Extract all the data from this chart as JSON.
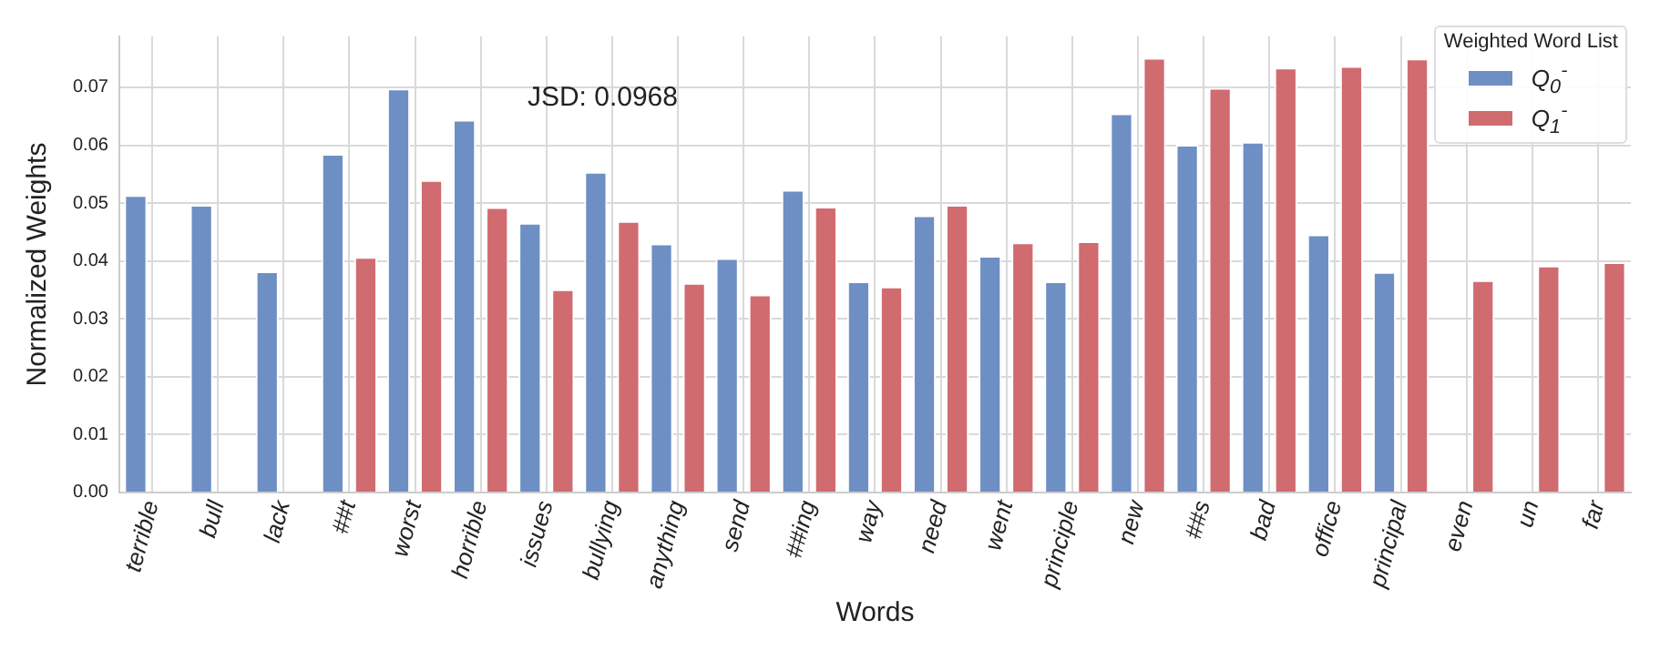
{
  "chart_data": {
    "type": "bar",
    "xlabel": "Words",
    "ylabel": "Normalized Weights",
    "legend_title": "Weighted Word List",
    "categories": [
      "terrible",
      "bull",
      "lack",
      "##t",
      "worst",
      "horrible",
      "issues",
      "bullying",
      "anything",
      "send",
      "##ing",
      "way",
      "need",
      "went",
      "principle",
      "new",
      "##s",
      "bad",
      "office",
      "principal",
      "even",
      "un",
      "far"
    ],
    "series": [
      {
        "name": "Q$_{0}$$^{-}$",
        "color": "#6e8fc4",
        "values": [
          0.0514,
          0.0497,
          0.0382,
          0.0585,
          0.0698,
          0.0644,
          0.0466,
          0.0554,
          0.043,
          0.0405,
          0.0523,
          0.0365,
          0.0479,
          0.0409,
          0.0365,
          0.0655,
          0.0601,
          0.0606,
          0.0446,
          0.0381,
          null,
          null,
          null
        ]
      },
      {
        "name": "Q$_{1}$$^{-}$",
        "color": "#d06b70",
        "values": [
          null,
          null,
          null,
          0.0407,
          0.054,
          0.0493,
          0.0351,
          0.0469,
          0.0362,
          0.0342,
          0.0494,
          0.0356,
          0.0497,
          0.0432,
          0.0434,
          0.0751,
          0.0699,
          0.0734,
          0.0737,
          0.075,
          0.0367,
          0.0392,
          0.0398
        ]
      }
    ],
    "ylim": [
      0,
      0.0788
    ],
    "yticks": [
      {
        "value": 0,
        "label": "0.00"
      },
      {
        "value": 0.01,
        "label": "0.01"
      },
      {
        "value": 0.02,
        "label": "0.02"
      },
      {
        "value": 0.03,
        "label": "0.03"
      },
      {
        "value": 0.04,
        "label": "0.04"
      },
      {
        "value": 0.05,
        "label": "0.05"
      },
      {
        "value": 0.06,
        "label": "0.06"
      },
      {
        "value": 0.07,
        "label": "0.07"
      }
    ],
    "grid": true,
    "legend": "top right",
    "annotations": [
      "JSD: 0.0968"
    ]
  }
}
